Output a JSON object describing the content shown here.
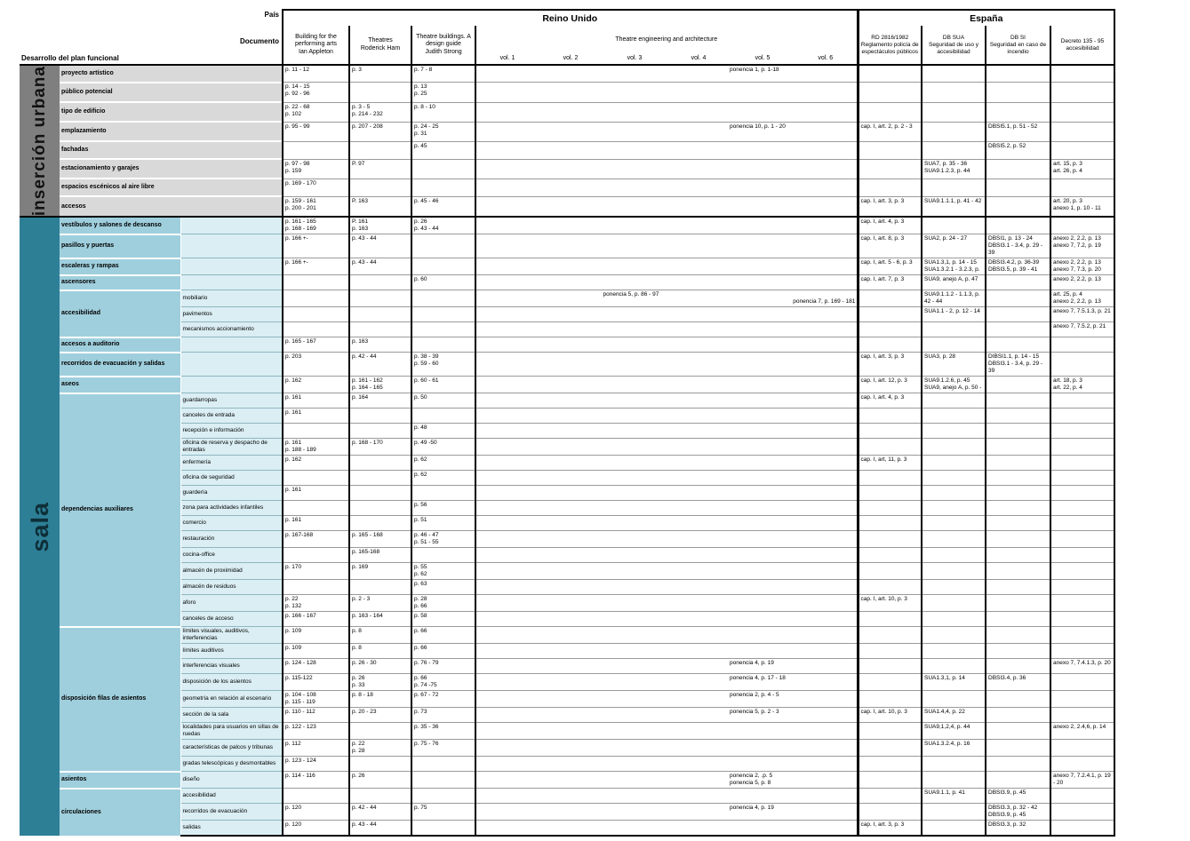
{
  "header": {
    "pais_label": "País",
    "documento_label": "Documento",
    "left_title": "Desarrollo del plan funcional",
    "uk": {
      "title": "Reino Unido",
      "docs": [
        "Building for the\nperforming arts\nIan Appleton",
        "Theatres\nRoderick Ham",
        "Theatre buildings. A\ndesign guide\nJudith Strong"
      ],
      "eng_title": "Theatre engineering and architecture",
      "vols": [
        "vol. 1",
        "vol. 2",
        "vol. 3",
        "vol. 4",
        "vol. 5",
        "vol. 6"
      ]
    },
    "es": {
      "title": "España",
      "docs": [
        "RD 2816/1982\nReglamento policía de\nespectáculos públicos",
        "DB SUA\nSeguridad de uso y\naccesibilidad",
        "DB SI\nSeguridad en caso de\nincendio",
        "Decreto 135 - 95\naccesibilidad"
      ]
    }
  },
  "colors": {
    "sidebar_gray": "#7f7f7f",
    "category_gray": "#d9d9d9",
    "sidebar_teal": "#2d7f96",
    "category_blue": "#9fcfdd",
    "subcategory_blue": "#daeef3"
  },
  "sections": [
    {
      "id": "insercion-urbana",
      "label": "inserción urbana",
      "groups": [
        {
          "category": "proyecto artístico",
          "rows": [
            {
              "app": "p. 11 - 12",
              "ham": "p. 3",
              "strong": "p. 7 - 8",
              "eng": [
                {
                  "vol": 5,
                  "text": "ponencia 1, p. 1-18"
                }
              ]
            }
          ]
        },
        {
          "category": "público potencial",
          "rows": [
            {
              "app": "p. 14 - 15\np. 92 - 96",
              "strong": "p. 13\np. 25"
            }
          ]
        },
        {
          "category": "tipo de edificio",
          "rows": [
            {
              "app": "p. 22 - 68\np. 102",
              "ham": "p. 3 - 5\np. 214 - 232",
              "strong": "p. 8 - 10"
            }
          ]
        },
        {
          "category": "emplazamiento",
          "rows": [
            {
              "app": "p. 95 - 99",
              "ham": "p. 207 - 208",
              "strong": "p. 24 - 25\np. 31",
              "eng": [
                {
                  "vol": 5,
                  "text": "ponencia 10, p. 1 - 20"
                }
              ],
              "rd": "cap. I, art. 2, p. 2 - 3",
              "si": "DBSI5.1, p. 51 - 52"
            }
          ]
        },
        {
          "category": "fachadas",
          "rows": [
            {
              "strong": "p. 45",
              "si": "DBSI5.2, p. 52"
            }
          ]
        },
        {
          "category": "estacionamiento y garajes",
          "rows": [
            {
              "app": "p. 97 - 98\np. 159",
              "ham": "P. 97",
              "sua": "SUA7, p. 35 - 36\nSUA9.1.2.3, p. 44",
              "dec": "art. 15, p. 3\nart. 26, p. 4"
            }
          ]
        },
        {
          "category": "espacios escénicos al aire libre",
          "rows": [
            {
              "app": "p. 169 - 170"
            }
          ]
        },
        {
          "category": "accesos",
          "rows": [
            {
              "app": "p. 159 - 161\np. 200 - 201",
              "ham": "P. 163",
              "strong": "p. 45 - 46",
              "rd": "cap. I, art. 3, p. 3",
              "sua": "SUA9.1.1.1, p. 41 - 42",
              "dec": "art. 20, p. 3\nanexo 1, p. 10 - 11"
            }
          ]
        }
      ]
    },
    {
      "id": "sala",
      "label": "sala",
      "groups": [
        {
          "category": "vestíbulos y salones de descanso",
          "rows": [
            {
              "app": "p. 161 - 165\np. 168 - 169",
              "ham": "P. 161\np. 163",
              "strong": "p. 26\np. 43 - 44",
              "rd": "cap. I, art. 4, p. 3"
            }
          ]
        },
        {
          "category": "pasillos y puertas",
          "rows": [
            {
              "app": "p. 166 +-",
              "ham": "p. 43 - 44",
              "rd": "cap. I, art. 8, p. 3",
              "sua": "SUA2, p. 24 - 27",
              "si": "DBSI1, p. 13 - 24\nDBSI3.1 - 3.4, p. 29 - 39",
              "dec": "anexo 2, 2.2, p. 13\nanexo 7, 7.2, p. 19"
            }
          ]
        },
        {
          "category": "escaleras y rampas",
          "rows": [
            {
              "app": "p. 166 +-",
              "ham": "p. 43 - 44",
              "rd": "cap. I, art. 5 - 6, p. 3",
              "sua": "SUA1.3,1, p. 14 - 15\nSUA1.3.2.1 - 3.2.3, p.",
              "si": "DBSI3.4.2, p. 36-39\nDBSI3.5, p. 39 - 41",
              "dec": "anexo 2, 2.2, p. 13\nanexo 7, 7.3, p. 20"
            }
          ]
        },
        {
          "category": "ascensores",
          "rows": [
            {
              "strong": "p. 60",
              "rd": "cap. I, art. 7, p. 3",
              "sua": "SUA9, anejo A, p. 47",
              "dec": "anexo 2, 2.2, p. 13"
            }
          ]
        },
        {
          "category": "accesibilidad",
          "rows": [
            {
              "sub": "mobiliario",
              "eng": [
                {
                  "vol": 3,
                  "text": "ponencia 5, p. 86 - 97"
                },
                {
                  "vol": 6,
                  "text": "ponencia 7, p. 169 - 181"
                }
              ],
              "sua": "SUA9.1.1.2 - 1.1.3, p. 42 - 44",
              "dec": "art. 25, p. 4\nanexo 2, 2.2, p. 13"
            },
            {
              "sub": "pavimentos",
              "sua": "SUA1.1 - 2, p. 12 - 14",
              "dec": "anexo 7, 7.5.1.3, p. 21"
            },
            {
              "sub": "mecanismos accionamiento",
              "dec": "anexo 7, 7.5.2, p. 21"
            }
          ]
        },
        {
          "category": "accesos a auditorio",
          "rows": [
            {
              "app": "p. 165 - 167",
              "ham": "p. 163"
            }
          ]
        },
        {
          "category": "recorridos de evacuación y salidas",
          "rows": [
            {
              "app": "p. 203",
              "ham": "p. 42 - 44",
              "strong": "p. 38 - 39\np. 59 - 60",
              "rd": "cap. I, art. 3, p. 3",
              "sua": "SUA3, p. 28",
              "si": "DIBSI1.1, p. 14 - 15\nDBSI3.1 - 3.4, p. 29 - 39"
            }
          ]
        },
        {
          "category": "aseos",
          "rows": [
            {
              "app": "p. 162",
              "ham": "p. 161 - 162\np. 164 - 165",
              "strong": "p. 60 - 61",
              "rd": "cap. I, art. 12, p. 3",
              "sua": "SUA9.1.2.6, p. 45\nSUA9, anejo A, p. 50 -",
              "dec": "art. 18, p. 3\nart. 22, p. 4"
            }
          ]
        },
        {
          "category": "dependencias auxiliares",
          "rows": [
            {
              "sub": "guardarropas",
              "app": "p. 161",
              "ham": "p. 164",
              "strong": "p. 50",
              "rd": "cap. I, art. 4, p. 3"
            },
            {
              "sub": "canceles de entrada",
              "app": "p. 161"
            },
            {
              "sub": "recepción e información",
              "strong": "p. 48"
            },
            {
              "sub": "oficina de reserva y despacho de entradas",
              "app": "p. 161\np. 188 - 189",
              "ham": "p. 168 - 170",
              "strong": "p. 49 -50"
            },
            {
              "sub": "enfermería",
              "app": "p. 162",
              "strong": "p. 62",
              "rd": "cap. I, art, 11, p. 3"
            },
            {
              "sub": "oficina de seguridad",
              "strong": "p. 62"
            },
            {
              "sub": "guardería",
              "app": "p. 161"
            },
            {
              "sub": "zona para actividades infantiles",
              "strong": "p. 56"
            },
            {
              "sub": "comercio",
              "app": "p. 161",
              "strong": "p. 51"
            },
            {
              "sub": "restauración",
              "app": "p. 167-168",
              "ham": "p. 165 - 168",
              "strong": "p. 46 - 47\np. 51 - 55"
            },
            {
              "sub": "cocina-office",
              "ham": "p. 165-168"
            },
            {
              "sub": "almacén de proximidad",
              "app": "p. 170",
              "ham": "p. 169",
              "strong": "p. 55\np. 62"
            },
            {
              "sub": "almacén de residuos",
              "strong": "p. 63"
            },
            {
              "sub": "aforo",
              "app": "p. 22\np. 132",
              "ham": "p. 2 - 3",
              "strong": "p. 28\np. 66",
              "rd": "cap. I, art. 10, p. 3"
            },
            {
              "sub": "canceles de acceso",
              "app": "p. 166 - 167",
              "ham": "p. 163 - 164",
              "strong": "p. 58"
            }
          ]
        },
        {
          "category": "disposición filas de asientos",
          "rows": [
            {
              "sub": "límites visuales, auditivos, interferencias",
              "app": "p. 109",
              "ham": "p. 8",
              "strong": "p. 66"
            },
            {
              "sub": "límites auditivos",
              "app": "p. 109",
              "ham": "p. 8",
              "strong": "p. 66"
            },
            {
              "sub": "interferencias visuales",
              "app": "p. 124 - 128",
              "ham": "p. 26 - 30",
              "strong": "p. 76 - 79",
              "eng": [
                {
                  "vol": 5,
                  "text": "ponencia 4, p. 19"
                }
              ],
              "dec": "anexo 7, 7.4.1.3, p. 20"
            },
            {
              "sub": "disposición de los asientos",
              "app": "p. 115-122",
              "ham": "p. 26\np. 33",
              "strong": "p. 66\np. 74 -75",
              "eng": [
                {
                  "vol": 5,
                  "text": "ponencia 4, p. 17 - 18"
                }
              ],
              "sua": "SUA1.3,1, p. 14",
              "si": "DBSI3.4, p. 36"
            },
            {
              "sub": "geometría en relación al escenario",
              "app": "p. 104 - 108\np. 115 - 119",
              "ham": "p. 8 - 18",
              "strong": "p. 67 - 72",
              "eng": [
                {
                  "vol": 5,
                  "text": "ponencia 2, p. 4 - 5"
                }
              ]
            },
            {
              "sub": "sección de la sala",
              "app": "p. 110 - 112",
              "ham": "p. 20 - 23",
              "strong": "p. 73",
              "eng": [
                {
                  "vol": 5,
                  "text": "ponencia 5, p. 2 - 3"
                }
              ],
              "rd": "cap. I, art. 10, p. 3",
              "sua": "SUA1.4,4, p. 22"
            },
            {
              "sub": "localidades para usuarios en sillas de ruedas",
              "app": "p. 122 - 123",
              "strong": "p. 35 - 36",
              "sua": "SUA9,1,2,4, p. 44",
              "dec": "anexo 2, 2.4,6, p. 14"
            },
            {
              "sub": "características de palcos y tribunas",
              "app": "p. 112",
              "ham": "p. 22\np. 28",
              "strong": "p. 75 - 76",
              "sua": "SUA1.3.2.4, p. 16"
            },
            {
              "sub": "gradas telescópicas y desmontables",
              "app": "p. 123 - 124"
            }
          ]
        },
        {
          "category": "asientos",
          "rows": [
            {
              "sub": "diseño",
              "app": "p. 114 - 116",
              "ham": "p. 26",
              "eng": [
                {
                  "vol": 5,
                  "text": "ponencia 2, .p. 5"
                },
                {
                  "vol": 5,
                  "text": "ponencia 5, p. 8"
                }
              ],
              "dec": "anexo 7, 7.2.4.1, p. 19 - 20"
            }
          ]
        },
        {
          "category": "circulaciones",
          "rows": [
            {
              "sub": "accesibilidad",
              "sua": "SUA9.1.1, p. 41",
              "si": "DBSI3.9, p. 45"
            },
            {
              "sub": "recorridos de evacuación",
              "app": "p. 120",
              "ham": "p. 42 - 44",
              "strong": "p. 75",
              "eng": [
                {
                  "vol": 5,
                  "text": "ponencia 4, p. 19"
                }
              ],
              "si": "DBSI3.3, p. 32 - 42\nDBSI3.9, p. 45"
            },
            {
              "sub": "salidas",
              "app": "p. 120",
              "ham": "p. 43 - 44",
              "rd": "cap. I, art. 3, p. 3",
              "si": "DBSI3.3, p. 32"
            }
          ]
        }
      ]
    }
  ]
}
